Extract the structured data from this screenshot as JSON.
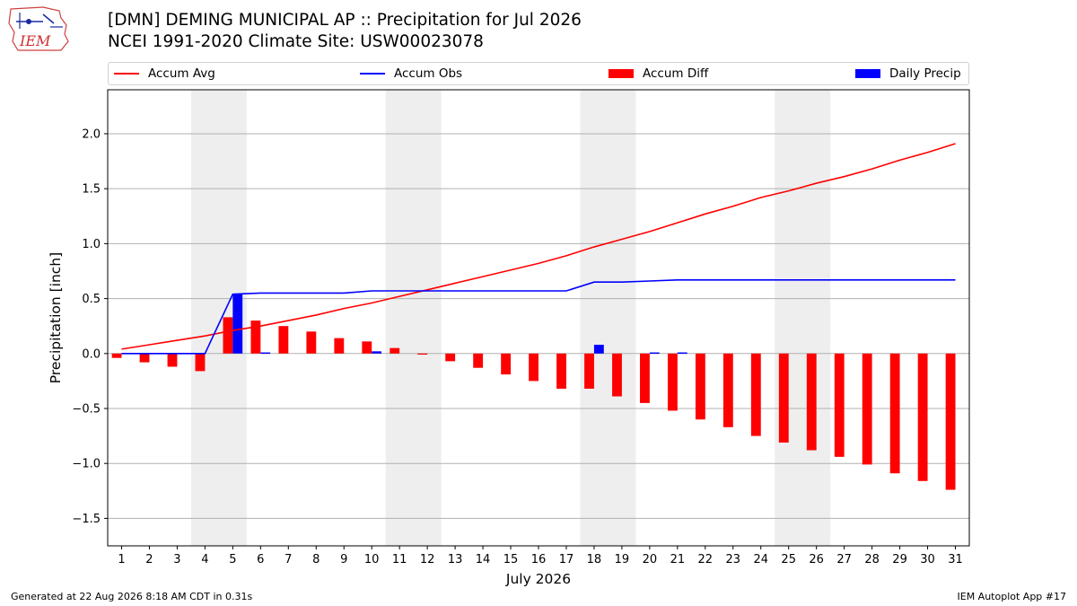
{
  "header": {
    "logo_text": "IEM",
    "title_line1": "[DMN] DEMING MUNICIPAL AP :: Precipitation for Jul 2026",
    "title_line2": "NCEI 1991-2020 Climate Site: USW00023078"
  },
  "footer": {
    "generated": "Generated at 22 Aug 2026 8:18 AM CDT in 0.31s",
    "app": "IEM Autoplot App #17"
  },
  "colors": {
    "accum_avg": "#ff0000",
    "accum_obs": "#0000ff",
    "accum_diff": "#ff0000",
    "daily_precip": "#0000ff",
    "weekend_shade": "#eeeeee",
    "grid": "#b0b0b0"
  },
  "chart_data": {
    "type": "bar",
    "title": "[DMN] DEMING MUNICIPAL AP :: Precipitation for Jul 2026",
    "subtitle": "NCEI 1991-2020 Climate Site: USW00023078",
    "xlabel": "July 2026",
    "ylabel": "Precipitation [inch]",
    "xlim": [
      0.5,
      31.5
    ],
    "ylim": [
      -1.75,
      2.4
    ],
    "yticks": [
      -1.5,
      -1.0,
      -0.5,
      0.0,
      0.5,
      1.0,
      1.5,
      2.0
    ],
    "ytick_labels": [
      "−1.5",
      "−1.0",
      "−0.5",
      "0.0",
      "0.5",
      "1.0",
      "1.5",
      "2.0"
    ],
    "grid": true,
    "legend_position": "top",
    "days": [
      1,
      2,
      3,
      4,
      5,
      6,
      7,
      8,
      9,
      10,
      11,
      12,
      13,
      14,
      15,
      16,
      17,
      18,
      19,
      20,
      21,
      22,
      23,
      24,
      25,
      26,
      27,
      28,
      29,
      30,
      31
    ],
    "weekend_spans": [
      [
        4,
        5
      ],
      [
        11,
        12
      ],
      [
        18,
        19
      ],
      [
        25,
        26
      ]
    ],
    "series": [
      {
        "name": "Accum Avg",
        "kind": "line",
        "values": [
          0.04,
          0.08,
          0.12,
          0.16,
          0.21,
          0.25,
          0.3,
          0.35,
          0.41,
          0.46,
          0.52,
          0.58,
          0.64,
          0.7,
          0.76,
          0.82,
          0.89,
          0.97,
          1.04,
          1.11,
          1.19,
          1.27,
          1.34,
          1.42,
          1.48,
          1.55,
          1.61,
          1.68,
          1.76,
          1.83,
          1.91
        ]
      },
      {
        "name": "Accum Obs",
        "kind": "line",
        "values": [
          0.0,
          0.0,
          0.0,
          0.0,
          0.54,
          0.55,
          0.55,
          0.55,
          0.55,
          0.57,
          0.57,
          0.57,
          0.57,
          0.57,
          0.57,
          0.57,
          0.57,
          0.65,
          0.65,
          0.66,
          0.67,
          0.67,
          0.67,
          0.67,
          0.67,
          0.67,
          0.67,
          0.67,
          0.67,
          0.67,
          0.67
        ]
      },
      {
        "name": "Accum Diff",
        "kind": "bar",
        "values": [
          -0.04,
          -0.08,
          -0.12,
          -0.16,
          0.33,
          0.3,
          0.25,
          0.2,
          0.14,
          0.11,
          0.05,
          -0.01,
          -0.07,
          -0.13,
          -0.19,
          -0.25,
          -0.32,
          -0.32,
          -0.39,
          -0.45,
          -0.52,
          -0.6,
          -0.67,
          -0.75,
          -0.81,
          -0.88,
          -0.94,
          -1.01,
          -1.09,
          -1.16,
          -1.24
        ]
      },
      {
        "name": "Daily Precip",
        "kind": "bar",
        "values": [
          0,
          0,
          0,
          0,
          0.54,
          0.01,
          0,
          0,
          0,
          0.02,
          0,
          0,
          0,
          0,
          0,
          0,
          0,
          0.08,
          0,
          0.01,
          0.01,
          0,
          0,
          0,
          0,
          0,
          0,
          0,
          0,
          0,
          0
        ]
      }
    ]
  }
}
